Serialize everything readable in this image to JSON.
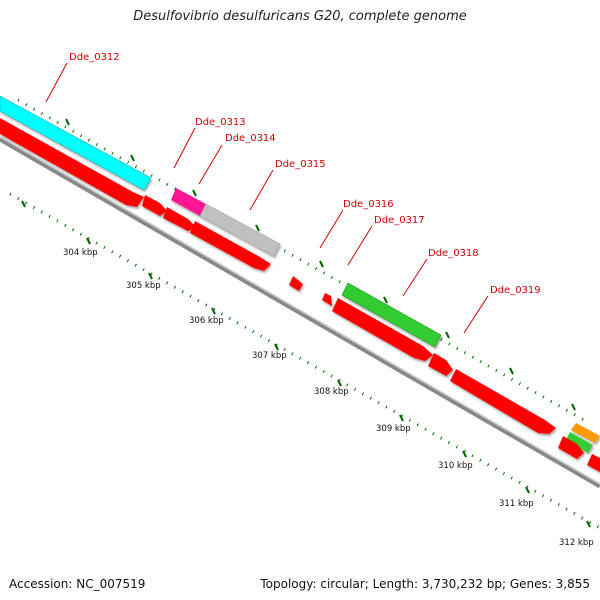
{
  "title": "Desulfovibrio desulfuricans G20, complete genome",
  "footer": {
    "accession": "Accession: NC_007519",
    "summary": "Topology: circular; Length: 3,730,232 bp; Genes: 3,855"
  },
  "gene_labels": [
    "Dde_0312",
    "Dde_0313",
    "Dde_0314",
    "Dde_0315",
    "Dde_0316",
    "Dde_0317",
    "Dde_0318",
    "Dde_0319"
  ],
  "kbp_labels": [
    "304 kbp",
    "305 kbp",
    "306 kbp",
    "307 kbp",
    "308 kbp",
    "309 kbp",
    "310 kbp",
    "311 kbp",
    "312 kbp"
  ],
  "colors": {
    "cds": "#ff0000",
    "cyan_feature": "#00ffff",
    "magenta_feature": "#ff1493",
    "gray_feature": "#c0c0c0",
    "green_feature": "#33cc33",
    "orange_feature": "#ff9900",
    "backbone": "#888888",
    "tick": "#006600",
    "label": "#d40000"
  }
}
